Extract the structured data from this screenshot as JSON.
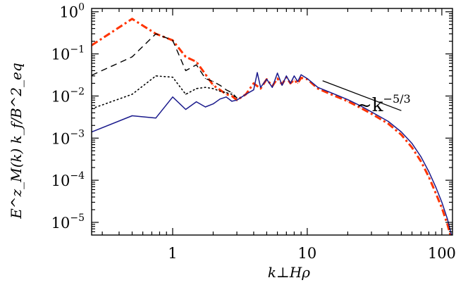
{
  "chart_data": {
    "type": "line",
    "title": "",
    "xlabel": "k⊥Hρ",
    "ylabel": "E^z_M(k) k_f/B^2_eq",
    "xscale": "log",
    "yscale": "log",
    "xlim": [
      0.25,
      120
    ],
    "ylim": [
      5e-06,
      1.2
    ],
    "x_ticks": [
      {
        "value": 1,
        "label": "1"
      },
      {
        "value": 10,
        "label": "10"
      },
      {
        "value": 100,
        "label": "100"
      }
    ],
    "y_ticks": [
      {
        "value": 1e-05,
        "base": "10",
        "exp": "−5"
      },
      {
        "value": 0.0001,
        "base": "10",
        "exp": "−4"
      },
      {
        "value": 0.001,
        "base": "10",
        "exp": "−3"
      },
      {
        "value": 0.01,
        "base": "10",
        "exp": "−2"
      },
      {
        "value": 0.1,
        "base": "10",
        "exp": "−1"
      },
      {
        "value": 1,
        "base": "10",
        "exp": "0"
      }
    ],
    "grid": false,
    "legend": "none",
    "annotation": {
      "text": "~k",
      "exp": "−5/3",
      "line_x": [
        13,
        50
      ],
      "line_y": [
        0.023,
        0.0045
      ]
    },
    "series": [
      {
        "style": "dash-dot",
        "color": "#ff3300",
        "x": [
          0.25,
          0.5,
          0.75,
          1.0,
          1.25,
          1.5,
          1.75,
          2.0,
          2.25,
          2.5,
          2.75,
          3.0,
          3.5,
          4.0,
          4.5,
          5.0,
          5.5,
          6.0,
          6.5,
          7.0,
          7.5,
          8.0,
          8.5,
          9.0,
          10,
          12,
          15,
          20,
          25,
          30,
          40,
          50,
          60,
          70,
          80,
          90,
          100,
          110,
          118
        ],
        "y": [
          0.16,
          0.68,
          0.3,
          0.21,
          0.085,
          0.065,
          0.033,
          0.018,
          0.014,
          0.011,
          0.01,
          0.008,
          0.011,
          0.02,
          0.015,
          0.025,
          0.017,
          0.026,
          0.019,
          0.028,
          0.02,
          0.024,
          0.02,
          0.027,
          0.025,
          0.015,
          0.011,
          0.0075,
          0.0052,
          0.0038,
          0.0022,
          0.0012,
          0.0006,
          0.00028,
          0.00012,
          5e-05,
          2.2e-05,
          9e-06,
          4e-06
        ]
      },
      {
        "style": "dashed",
        "color": "#000000",
        "x": [
          0.25,
          0.5,
          0.75,
          1.0,
          1.25,
          1.5,
          1.75,
          2.0,
          2.25,
          2.5,
          2.75,
          3.0
        ],
        "y": [
          0.031,
          0.085,
          0.3,
          0.21,
          0.04,
          0.055,
          0.026,
          0.022,
          0.018,
          0.014,
          0.012,
          0.009
        ]
      },
      {
        "style": "dotted",
        "color": "#000000",
        "x": [
          0.25,
          0.5,
          0.75,
          1.0,
          1.25,
          1.5,
          1.75,
          2.0,
          2.25,
          2.5,
          2.75,
          3.0
        ],
        "y": [
          0.005,
          0.011,
          0.03,
          0.028,
          0.011,
          0.015,
          0.016,
          0.015,
          0.013,
          0.012,
          0.011,
          0.009
        ]
      },
      {
        "style": "solid",
        "color": "#1a1a8c",
        "x": [
          0.25,
          0.5,
          0.75,
          1.0,
          1.25,
          1.5,
          1.75,
          2.0,
          2.25,
          2.5,
          2.75,
          3.0,
          3.5,
          4.0,
          4.25,
          4.5,
          5.0,
          5.5,
          6.0,
          6.5,
          7.0,
          7.5,
          8.0,
          8.5,
          9.0,
          10,
          12,
          15,
          20,
          25,
          30,
          40,
          50,
          60,
          70,
          80,
          90,
          100,
          110,
          118
        ],
        "y": [
          0.0014,
          0.0034,
          0.003,
          0.0095,
          0.0048,
          0.0073,
          0.0055,
          0.0065,
          0.0085,
          0.0095,
          0.0075,
          0.008,
          0.011,
          0.014,
          0.036,
          0.016,
          0.025,
          0.016,
          0.035,
          0.018,
          0.03,
          0.02,
          0.03,
          0.022,
          0.032,
          0.026,
          0.016,
          0.012,
          0.0082,
          0.0058,
          0.0042,
          0.0025,
          0.0014,
          0.00075,
          0.00036,
          0.00016,
          7e-05,
          3e-05,
          1.2e-05,
          5e-06
        ]
      }
    ]
  }
}
